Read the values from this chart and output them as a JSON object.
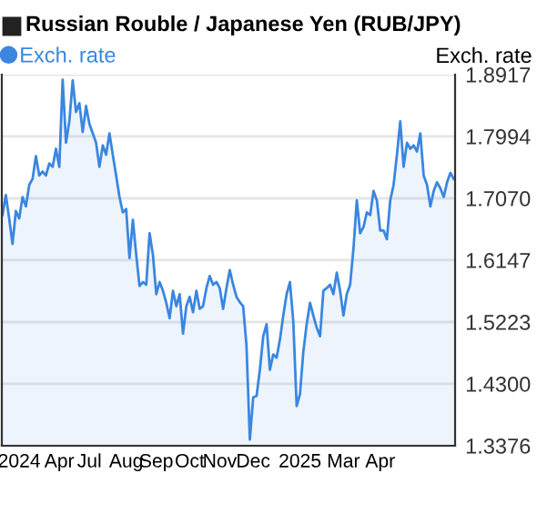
{
  "chart_data": {
    "type": "area",
    "title": "Russian Rouble / Japanese Yen (RUB/JPY)",
    "ylabel": "Exch. rate",
    "categories": [
      null,
      null,
      null,
      null,
      null,
      "2024",
      null,
      null,
      null,
      null,
      null,
      null,
      null,
      null,
      null,
      null,
      null,
      "Apr",
      null,
      null,
      null,
      null,
      null,
      null,
      null,
      null,
      "Jul",
      null,
      null,
      null,
      null,
      null,
      null,
      null,
      null,
      null,
      null,
      "Aug",
      null,
      null,
      null,
      null,
      null,
      null,
      null,
      null,
      "Sep",
      null,
      null,
      null,
      null,
      null,
      null,
      null,
      null,
      null,
      "Oct",
      null,
      null,
      null,
      null,
      null,
      null,
      null,
      null,
      "Nov",
      null,
      null,
      null,
      null,
      null,
      null,
      null,
      null,
      null,
      "Dec",
      null,
      null,
      null,
      null,
      null,
      null,
      null,
      null,
      null,
      null,
      null,
      null,
      null,
      "2025",
      null,
      null,
      null,
      null,
      null,
      null,
      null,
      null,
      null,
      null,
      null,
      null,
      "Mar",
      null,
      null,
      null,
      null,
      null,
      null,
      null,
      null,
      null,
      null,
      "Apr",
      null,
      null,
      null,
      null,
      null,
      null,
      null,
      null,
      null,
      null,
      null,
      null,
      null,
      null,
      null,
      null,
      null,
      null,
      null,
      null,
      null,
      null
    ],
    "series": [
      {
        "name": "Exch. rate",
        "color": "#3a86e0",
        "values": [
          1.682,
          1.712,
          1.677,
          1.639,
          1.688,
          1.677,
          1.709,
          1.695,
          1.727,
          1.736,
          1.77,
          1.741,
          1.747,
          1.741,
          1.759,
          1.754,
          1.781,
          1.754,
          1.884,
          1.79,
          1.822,
          1.883,
          1.836,
          1.849,
          1.806,
          1.845,
          1.818,
          1.804,
          1.79,
          1.754,
          1.786,
          1.772,
          1.804,
          1.772,
          1.741,
          1.709,
          1.686,
          1.691,
          1.618,
          1.675,
          1.623,
          1.576,
          1.582,
          1.578,
          1.655,
          1.623,
          1.564,
          1.582,
          1.569,
          1.551,
          1.528,
          1.569,
          1.546,
          1.564,
          1.505,
          1.546,
          1.56,
          1.537,
          1.569,
          1.542,
          1.546,
          1.573,
          1.591,
          1.578,
          1.582,
          1.573,
          1.542,
          1.573,
          1.6,
          1.578,
          1.56,
          1.552,
          1.546,
          1.487,
          1.347,
          1.41,
          1.412,
          1.451,
          1.501,
          1.519,
          1.451,
          1.474,
          1.469,
          1.496,
          1.532,
          1.564,
          1.582,
          1.523,
          1.397,
          1.415,
          1.478,
          1.519,
          1.551,
          1.532,
          1.514,
          1.501,
          1.569,
          1.573,
          1.578,
          1.564,
          1.596,
          1.569,
          1.532,
          1.564,
          1.578,
          1.632,
          1.704,
          1.655,
          1.664,
          1.686,
          1.682,
          1.718,
          1.704,
          1.659,
          1.659,
          1.646,
          1.704,
          1.727,
          1.772,
          1.822,
          1.754,
          1.79,
          1.781,
          1.786,
          1.777,
          1.804,
          1.741,
          1.727,
          1.695,
          1.718,
          1.731,
          1.722,
          1.709,
          1.731,
          1.745,
          1.736
        ]
      }
    ],
    "ylim": [
      1.3376,
      1.8917
    ],
    "yticks": [
      {
        "value": 1.3376,
        "label": "1.3376"
      },
      {
        "value": 1.43,
        "label": "1.4300"
      },
      {
        "value": 1.5223,
        "label": "1.5223"
      },
      {
        "value": 1.6147,
        "label": "1.6147"
      },
      {
        "value": 1.707,
        "label": "1.7070"
      },
      {
        "value": 1.7994,
        "label": "1.7994"
      },
      {
        "value": 1.8917,
        "label": "1.8917"
      }
    ],
    "grid": "y",
    "legend": "top left"
  }
}
